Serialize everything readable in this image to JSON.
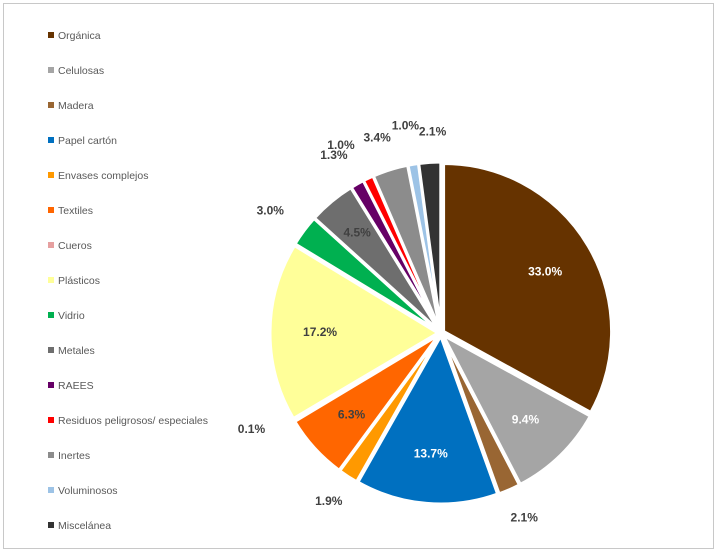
{
  "chart_data": {
    "type": "pie",
    "title": "",
    "legend_position": "left",
    "categories": [
      "Orgánica",
      "Celulosas",
      "Madera",
      "Papel cartón",
      "Envases complejos",
      "Textiles",
      "Cueros",
      "Plásticos",
      "Vidrio",
      "Metales",
      "RAEES",
      "Residuos peligrosos/ especiales",
      "Inertes",
      "Voluminosos",
      "Miscelánea"
    ],
    "values": [
      33.0,
      9.4,
      2.1,
      13.7,
      1.9,
      6.3,
      0.1,
      17.2,
      3.0,
      4.5,
      1.3,
      1.0,
      3.4,
      1.0,
      2.1
    ],
    "data_labels": [
      "33.0%",
      "9.4%",
      "2.1%",
      "13.7%",
      "1.9%",
      "6.3%",
      "0.1%",
      "17.2%",
      "3.0%",
      "4.5%",
      "1.3%",
      "1.0%",
      "3.4%",
      "1.0%",
      "2.1%"
    ],
    "colors": [
      "#663300",
      "#a5a5a5",
      "#996633",
      "#0070c0",
      "#ff9900",
      "#ff6600",
      "#e6a0a0",
      "#ffff99",
      "#00b050",
      "#6e6e6e",
      "#660066",
      "#ff0000",
      "#8c8c8c",
      "#9dc3e6",
      "#333333"
    ]
  }
}
